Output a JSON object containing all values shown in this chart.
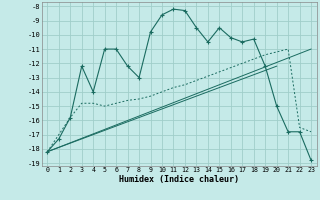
{
  "xlabel": "Humidex (Indice chaleur)",
  "bg_color": "#c5eae8",
  "grid_color": "#a0ceca",
  "line_color": "#1a6b60",
  "xlim": [
    -0.5,
    23.5
  ],
  "ylim": [
    -19.2,
    -7.7
  ],
  "yticks": [
    -8,
    -9,
    -10,
    -11,
    -12,
    -13,
    -14,
    -15,
    -16,
    -17,
    -18,
    -19
  ],
  "xticks": [
    0,
    1,
    2,
    3,
    4,
    5,
    6,
    7,
    8,
    9,
    10,
    11,
    12,
    13,
    14,
    15,
    16,
    17,
    18,
    19,
    20,
    21,
    22,
    23
  ],
  "curve1_x": [
    0,
    1,
    2,
    3,
    4,
    5,
    6,
    7,
    8,
    9,
    10,
    11,
    12,
    13,
    14,
    15,
    16,
    17,
    18,
    19,
    20,
    21,
    22,
    23
  ],
  "curve1_y": [
    -18.2,
    -17.3,
    -15.8,
    -12.2,
    -14.0,
    -11.0,
    -11.0,
    -12.2,
    -13.0,
    -9.8,
    -8.6,
    -8.2,
    -8.3,
    -9.5,
    -10.5,
    -9.5,
    -10.2,
    -10.5,
    -10.3,
    -12.2,
    -15.0,
    -16.8,
    -16.8,
    -18.8
  ],
  "curve2_x": [
    0,
    2,
    3,
    4,
    5,
    6,
    7,
    8,
    9,
    10,
    11,
    12,
    13,
    14,
    15,
    16,
    17,
    18,
    19,
    20,
    21,
    22,
    23
  ],
  "curve2_y": [
    -18.2,
    -15.8,
    -14.8,
    -14.8,
    -15.0,
    -14.8,
    -14.6,
    -14.5,
    -14.3,
    -14.0,
    -13.7,
    -13.5,
    -13.2,
    -12.9,
    -12.6,
    -12.3,
    -12.0,
    -11.7,
    -11.4,
    -11.2,
    -11.0,
    -16.5,
    -16.8
  ],
  "line1_x": [
    0,
    23
  ],
  "line1_y": [
    -18.2,
    -11.0
  ],
  "line2_x": [
    0,
    20
  ],
  "line2_y": [
    -18.2,
    -12.2
  ]
}
